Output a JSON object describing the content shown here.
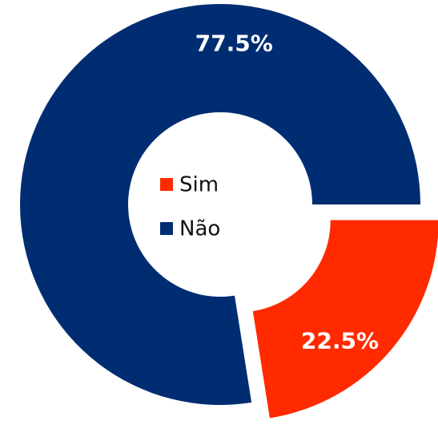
{
  "chart_data": {
    "type": "donut",
    "categories": [
      "Sim",
      "Não"
    ],
    "values": [
      22.5,
      77.5
    ],
    "value_labels": [
      "22.5%",
      "77.5%"
    ],
    "colors": [
      "#ff2a00",
      "#002d72"
    ],
    "exploded": [
      true,
      false
    ],
    "legend": "center"
  }
}
